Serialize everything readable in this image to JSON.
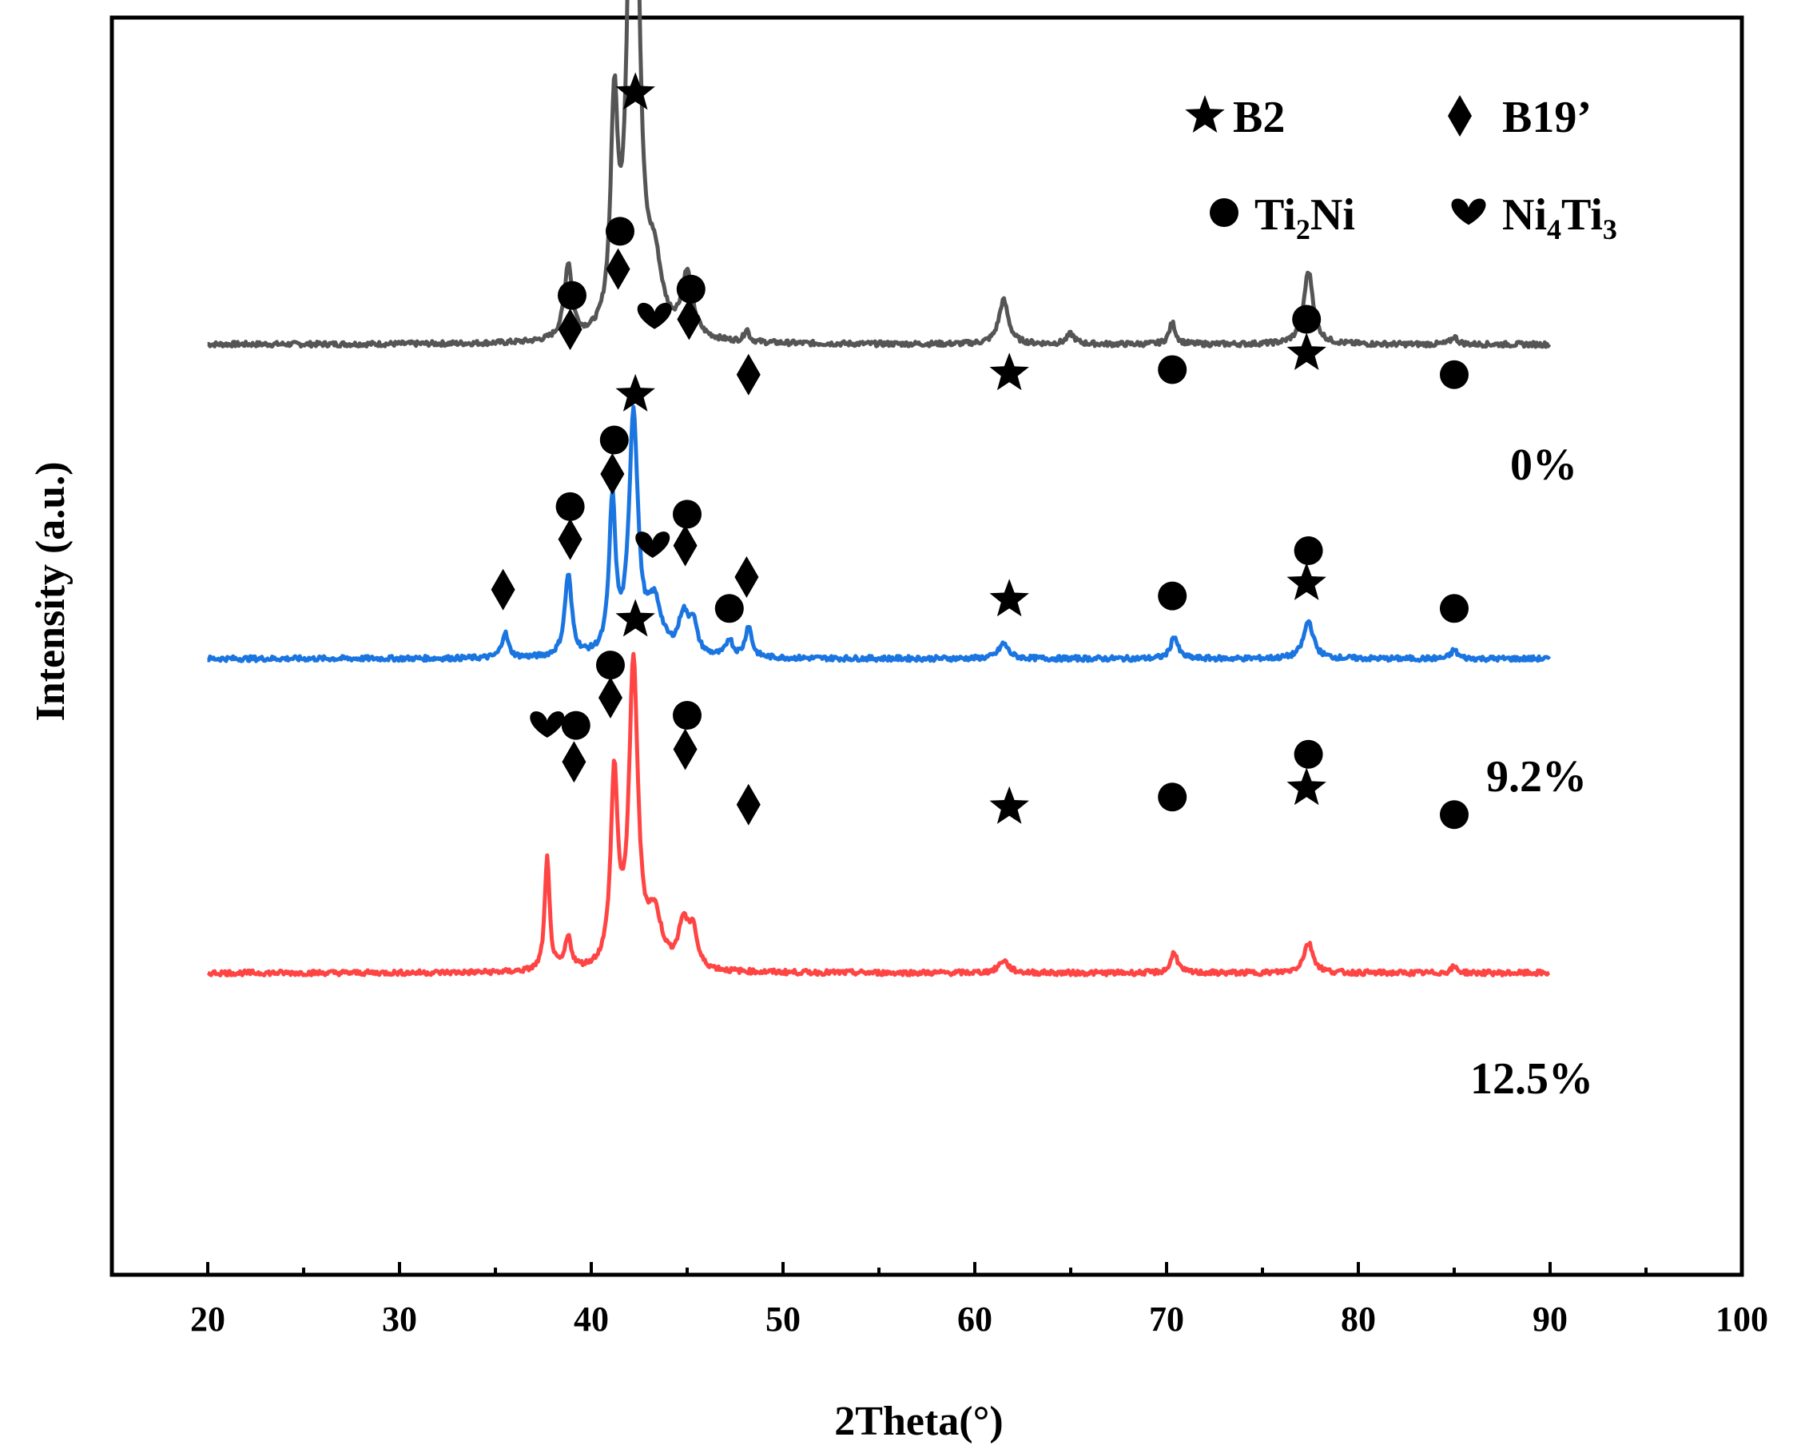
{
  "chart_data": {
    "type": "line",
    "title": "",
    "xlabel": "2Theta(°)",
    "ylabel": "Intensity (a.u.)",
    "xlim": [
      15,
      100
    ],
    "xticks": [
      20,
      30,
      40,
      50,
      60,
      70,
      80,
      90,
      100
    ],
    "yticks": [],
    "legend": {
      "position": "top-right",
      "entries": [
        {
          "marker": "star",
          "label": "B2"
        },
        {
          "marker": "diamond",
          "label": "B19’"
        },
        {
          "marker": "circle",
          "label": "Ti",
          "sub1": "2",
          "label2": "Ni",
          "sub2": ""
        },
        {
          "marker": "heart",
          "label": "Ni",
          "sub1": "4",
          "label2": "Ti",
          "sub2": "3"
        }
      ]
    },
    "colors": {
      "0%": "#555555",
      "9.2%": "#1a75e0",
      "12.5%": "#ff4444"
    },
    "series": [
      {
        "name": "0%",
        "color": "#555555",
        "baseline": 0.74,
        "peaks": [
          {
            "x": 38.8,
            "h": 0.06,
            "w": 0.25
          },
          {
            "x": 41.2,
            "h": 0.17,
            "w": 0.22
          },
          {
            "x": 42.2,
            "h": 0.58,
            "w": 0.28
          },
          {
            "x": 43.3,
            "h": 0.05,
            "w": 0.45
          },
          {
            "x": 45.0,
            "h": 0.05,
            "w": 0.35
          },
          {
            "x": 48.1,
            "h": 0.01,
            "w": 0.15
          },
          {
            "x": 61.5,
            "h": 0.035,
            "w": 0.3
          },
          {
            "x": 65.0,
            "h": 0.008,
            "w": 0.25
          },
          {
            "x": 70.3,
            "h": 0.017,
            "w": 0.2
          },
          {
            "x": 77.4,
            "h": 0.058,
            "w": 0.3
          },
          {
            "x": 85.0,
            "h": 0.006,
            "w": 0.2
          }
        ],
        "markers": [
          {
            "type": "star",
            "x": 42.3,
            "y": 0.94
          },
          {
            "type": "circle",
            "x": 41.5,
            "y": 0.83
          },
          {
            "type": "diamond",
            "x": 41.4,
            "y": 0.8
          },
          {
            "type": "circle",
            "x": 39.0,
            "y": 0.779
          },
          {
            "type": "diamond",
            "x": 38.9,
            "y": 0.752
          },
          {
            "type": "heart",
            "x": 43.3,
            "y": 0.762
          },
          {
            "type": "circle",
            "x": 45.2,
            "y": 0.784
          },
          {
            "type": "diamond",
            "x": 45.1,
            "y": 0.76
          },
          {
            "type": "diamond",
            "x": 48.2,
            "y": 0.716
          },
          {
            "type": "star",
            "x": 61.8,
            "y": 0.717
          },
          {
            "type": "circle",
            "x": 70.3,
            "y": 0.72
          },
          {
            "type": "circle",
            "x": 77.3,
            "y": 0.76
          },
          {
            "type": "star",
            "x": 77.3,
            "y": 0.733
          },
          {
            "type": "circle",
            "x": 85.0,
            "y": 0.716
          }
        ]
      },
      {
        "name": "9.2%",
        "color": "#1a75e0",
        "baseline": 0.49,
        "peaks": [
          {
            "x": 35.5,
            "h": 0.02,
            "w": 0.2
          },
          {
            "x": 38.8,
            "h": 0.065,
            "w": 0.22
          },
          {
            "x": 41.1,
            "h": 0.12,
            "w": 0.2
          },
          {
            "x": 42.2,
            "h": 0.19,
            "w": 0.28
          },
          {
            "x": 43.3,
            "h": 0.04,
            "w": 0.45
          },
          {
            "x": 44.8,
            "h": 0.03,
            "w": 0.3
          },
          {
            "x": 45.3,
            "h": 0.025,
            "w": 0.25
          },
          {
            "x": 47.2,
            "h": 0.014,
            "w": 0.2
          },
          {
            "x": 48.2,
            "h": 0.025,
            "w": 0.2
          },
          {
            "x": 61.5,
            "h": 0.012,
            "w": 0.3
          },
          {
            "x": 70.4,
            "h": 0.018,
            "w": 0.22
          },
          {
            "x": 77.4,
            "h": 0.03,
            "w": 0.3
          },
          {
            "x": 85.0,
            "h": 0.007,
            "w": 0.2
          }
        ],
        "markers": [
          {
            "type": "star",
            "x": 42.3,
            "y": 0.7
          },
          {
            "type": "circle",
            "x": 41.2,
            "y": 0.664
          },
          {
            "type": "diamond",
            "x": 41.1,
            "y": 0.637
          },
          {
            "type": "circle",
            "x": 38.9,
            "y": 0.611
          },
          {
            "type": "diamond",
            "x": 38.9,
            "y": 0.585
          },
          {
            "type": "heart",
            "x": 43.2,
            "y": 0.58
          },
          {
            "type": "circle",
            "x": 45.0,
            "y": 0.605
          },
          {
            "type": "diamond",
            "x": 44.9,
            "y": 0.58
          },
          {
            "type": "diamond",
            "x": 35.4,
            "y": 0.545
          },
          {
            "type": "circle",
            "x": 47.2,
            "y": 0.53
          },
          {
            "type": "diamond",
            "x": 48.1,
            "y": 0.555
          },
          {
            "type": "star",
            "x": 61.8,
            "y": 0.537
          },
          {
            "type": "circle",
            "x": 70.3,
            "y": 0.54
          },
          {
            "type": "circle",
            "x": 77.4,
            "y": 0.576
          },
          {
            "type": "star",
            "x": 77.3,
            "y": 0.55
          },
          {
            "type": "circle",
            "x": 85.0,
            "y": 0.53
          }
        ]
      },
      {
        "name": "12.5%",
        "color": "#ff4444",
        "baseline": 0.24,
        "peaks": [
          {
            "x": 37.7,
            "h": 0.09,
            "w": 0.15
          },
          {
            "x": 38.8,
            "h": 0.025,
            "w": 0.2
          },
          {
            "x": 41.2,
            "h": 0.15,
            "w": 0.22
          },
          {
            "x": 42.2,
            "h": 0.24,
            "w": 0.28
          },
          {
            "x": 43.3,
            "h": 0.04,
            "w": 0.45
          },
          {
            "x": 44.8,
            "h": 0.035,
            "w": 0.3
          },
          {
            "x": 45.3,
            "h": 0.03,
            "w": 0.25
          },
          {
            "x": 61.5,
            "h": 0.01,
            "w": 0.3
          },
          {
            "x": 70.4,
            "h": 0.017,
            "w": 0.2
          },
          {
            "x": 77.4,
            "h": 0.024,
            "w": 0.3
          },
          {
            "x": 85.0,
            "h": 0.005,
            "w": 0.2
          }
        ],
        "markers": [
          {
            "type": "star",
            "x": 42.3,
            "y": 0.521
          },
          {
            "type": "circle",
            "x": 41.0,
            "y": 0.485
          },
          {
            "type": "diamond",
            "x": 41.0,
            "y": 0.459
          },
          {
            "type": "heart",
            "x": 37.7,
            "y": 0.437
          },
          {
            "type": "circle",
            "x": 39.2,
            "y": 0.437
          },
          {
            "type": "diamond",
            "x": 39.1,
            "y": 0.408
          },
          {
            "type": "circle",
            "x": 45.0,
            "y": 0.445
          },
          {
            "type": "diamond",
            "x": 44.9,
            "y": 0.418
          },
          {
            "type": "diamond",
            "x": 48.2,
            "y": 0.374
          },
          {
            "type": "star",
            "x": 61.8,
            "y": 0.372
          },
          {
            "type": "circle",
            "x": 70.3,
            "y": 0.38
          },
          {
            "type": "circle",
            "x": 77.4,
            "y": 0.414
          },
          {
            "type": "star",
            "x": 77.3,
            "y": 0.387
          },
          {
            "type": "circle",
            "x": 85.0,
            "y": 0.366
          }
        ]
      }
    ]
  }
}
